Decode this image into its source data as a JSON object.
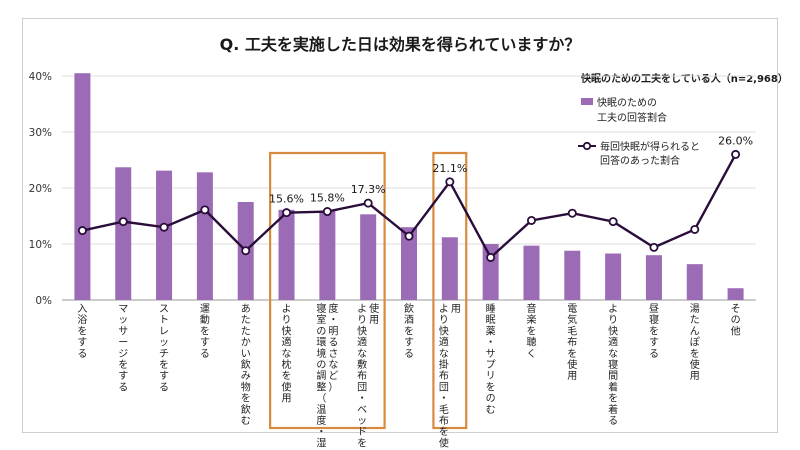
{
  "chart_data": {
    "type": "bar",
    "title": "Q. 工夫を実施した日は効果を得られていますか？",
    "subtitle": "快眠のための工夫をしている人（n=2,968）",
    "ylim": [
      0,
      45
    ],
    "y_ticks": [
      "0%",
      "10%",
      "20%",
      "30%",
      "40%"
    ],
    "grid": true,
    "legend_position": "top-right",
    "categories": [
      "入浴をする",
      "マッサージをする",
      "ストレッチをする",
      "運動をする",
      "あたたかい飲み物を飲む",
      "より快適な枕を使用",
      "寝室の環境の調整（温度・湿度・明るさなど）",
      "より快適な敷布団・ベッドを使用",
      "飲酒をする",
      "より快適な掛布団・毛布を使用",
      "睡眠薬・サプリをのむ",
      "音楽を聴く",
      "電気毛布を使用",
      "より快適な寝間着を着る",
      "昼寝をする",
      "湯たんぽを使用",
      "その他"
    ],
    "series": [
      {
        "name": "快眠のための工夫の回答割合",
        "type": "bar",
        "color": "#9b6bb5",
        "values": [
          40.5,
          23.7,
          23.1,
          22.8,
          17.5,
          16.1,
          15.9,
          15.3,
          13.0,
          11.2,
          10.0,
          9.7,
          8.8,
          8.3,
          8.0,
          6.4,
          2.1
        ]
      },
      {
        "name": "毎回快眠が得られると回答のあった割合",
        "type": "line",
        "color": "#2a0d3a",
        "values": [
          12.4,
          14.0,
          13.0,
          16.1,
          8.8,
          15.6,
          15.8,
          17.3,
          11.4,
          21.1,
          7.6,
          14.2,
          15.5,
          14.0,
          9.4,
          12.6,
          26.0
        ]
      }
    ],
    "data_labels": [
      "15.6%",
      "15.8%",
      "17.3%",
      "21.1%",
      "26.0%"
    ],
    "highlight_boxes": [
      {
        "from": "より快適な枕を使用",
        "to": "より快適な敷布団・ベッドを使用",
        "color": "#d98a3d"
      },
      {
        "from": "より快適な掛布団・毛布を使用",
        "to": "より快適な掛布団・毛布を使用",
        "color": "#d98a3d"
      }
    ]
  }
}
